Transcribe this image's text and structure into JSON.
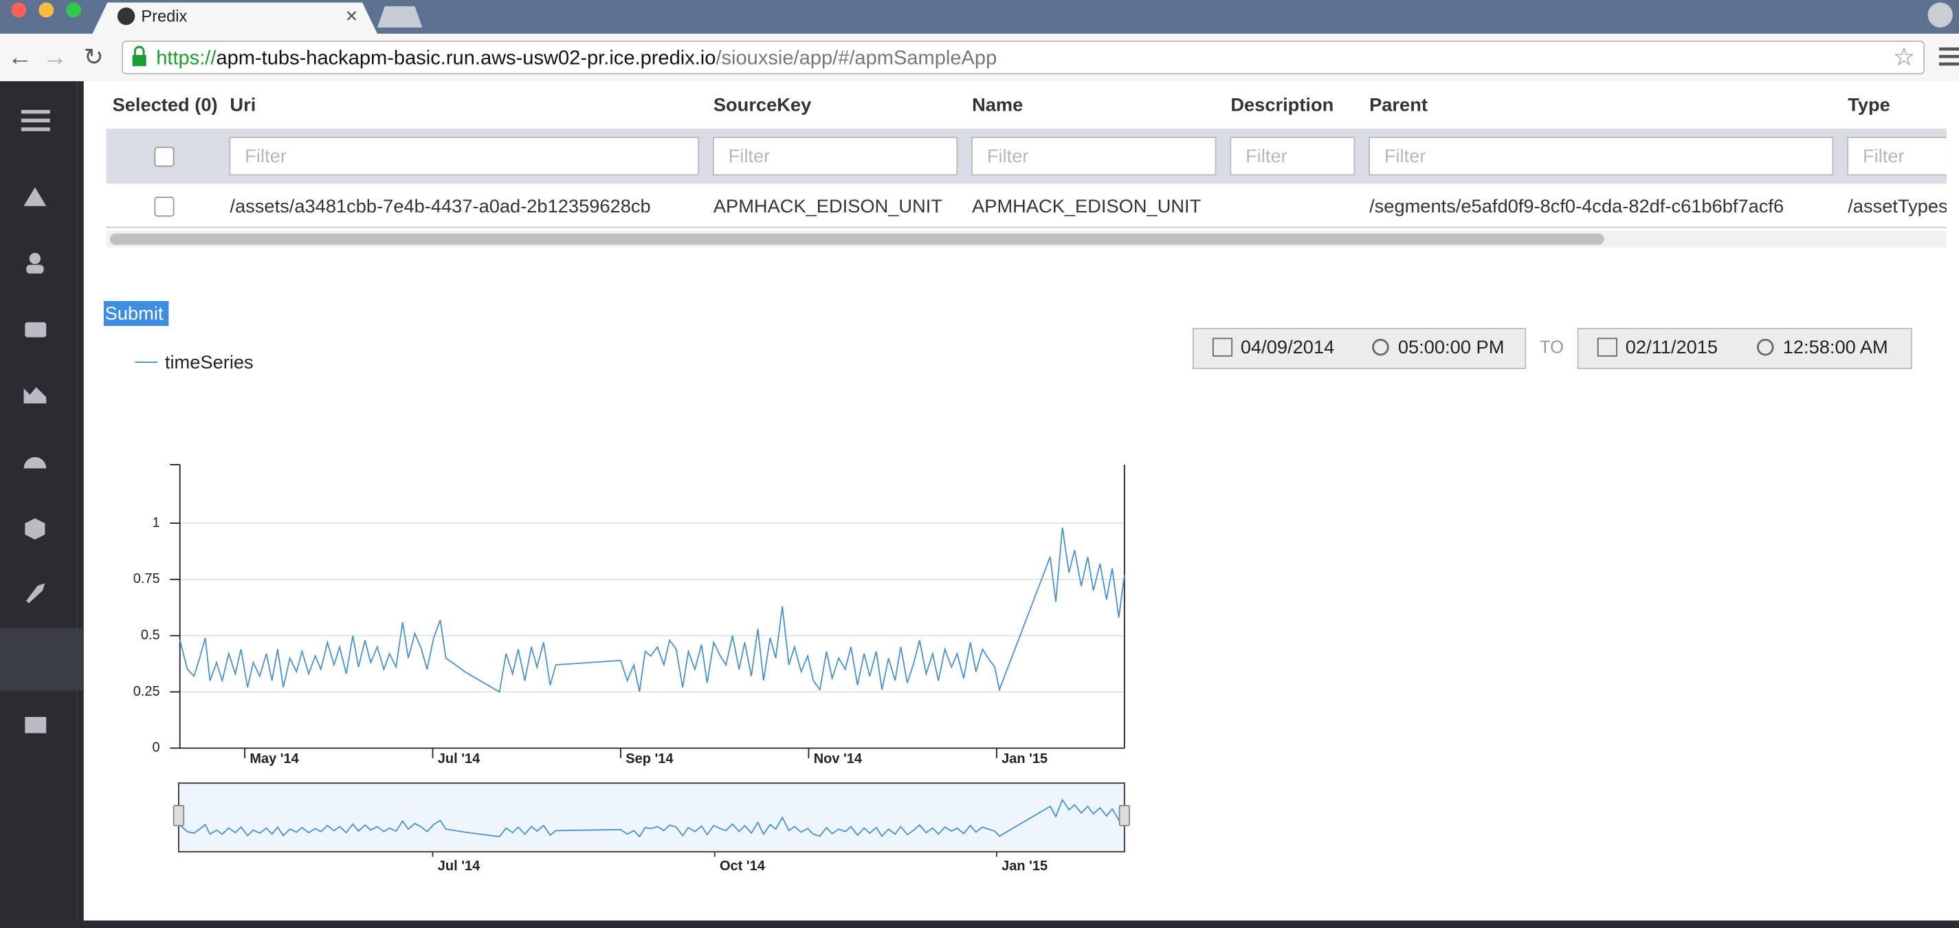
{
  "browser": {
    "tab_title": "Predix",
    "url_scheme": "https://",
    "url_host": "apm-tubs-hackapm-basic.run.aws-usw02-pr.ice.predix.io",
    "url_path": "/siouxsie/app/#/apmSampleApp"
  },
  "table": {
    "headers": [
      "Selected (0)",
      "Uri",
      "SourceKey",
      "Name",
      "Description",
      "Parent",
      "Type"
    ],
    "filter_placeholders": [
      "Filter",
      "Filter",
      "Filter",
      "Filter",
      "Filter",
      "Filter"
    ],
    "rows": [
      {
        "uri": "/assets/a3481cbb-7e4b-4437-a0ad-2b12359628cb",
        "source_key": "APMHACK_EDISON_UNIT",
        "name": "APMHACK_EDISON_UNIT",
        "parent": "/segments/e5afd0f9-8cf0-4cda-82df-c61b6bf7acf6",
        "type": "/assetTypes"
      }
    ]
  },
  "submit": "Submit",
  "date_range": {
    "from_date": "04/09/2014",
    "from_time": "05:00:00 PM",
    "separator": "TO",
    "to_date": "02/11/2015",
    "to_time": "12:58:00 AM"
  },
  "chart_data": {
    "type": "line",
    "x": [
      3.31,
      3.39,
      3.46,
      3.52,
      3.58,
      3.63,
      3.7,
      3.76,
      3.83,
      3.9,
      3.96,
      4.03,
      4.09,
      4.16,
      4.23,
      4.29,
      4.35,
      4.41,
      4.48,
      4.55,
      4.61,
      4.68,
      4.75,
      4.81,
      4.88,
      4.95,
      5.01,
      5.08,
      5.15,
      5.21,
      5.28,
      5.34,
      5.41,
      5.48,
      5.54,
      5.61,
      5.68,
      5.74,
      5.81,
      5.88,
      5.94,
      6.01,
      6.08,
      6.14,
      6.21,
      6.34,
      6.71,
      6.78,
      6.85,
      6.91,
      6.98,
      7.05,
      7.11,
      7.18,
      7.25,
      7.31,
      8.0,
      8.07,
      8.14,
      8.2,
      8.26,
      8.32,
      8.39,
      8.46,
      8.52,
      8.59,
      8.66,
      8.72,
      8.79,
      8.86,
      8.92,
      8.99,
      9.06,
      9.12,
      9.19,
      9.26,
      9.32,
      9.39,
      9.46,
      9.52,
      9.59,
      9.65,
      9.72,
      9.79,
      9.85,
      9.92,
      9.99,
      10.05,
      10.12,
      10.19,
      10.25,
      10.32,
      10.39,
      10.45,
      10.52,
      10.59,
      10.65,
      10.72,
      10.78,
      10.85,
      10.92,
      10.98,
      11.05,
      11.12,
      11.18,
      11.25,
      11.32,
      11.38,
      11.45,
      11.52,
      11.58,
      11.65,
      11.72,
      11.78,
      11.85,
      11.91,
      11.98,
      12.03,
      12.57,
      12.63,
      12.7,
      12.77,
      12.83,
      12.9,
      12.97,
      13.03,
      13.1,
      13.17,
      13.23,
      13.3,
      13.36
    ],
    "series": [
      {
        "name": "timeSeries",
        "color": "#4a93cf",
        "values": [
          0.48,
          0.35,
          0.32,
          0.4,
          0.49,
          0.3,
          0.38,
          0.3,
          0.42,
          0.33,
          0.44,
          0.27,
          0.38,
          0.32,
          0.42,
          0.3,
          0.44,
          0.27,
          0.4,
          0.34,
          0.43,
          0.33,
          0.41,
          0.35,
          0.47,
          0.37,
          0.45,
          0.33,
          0.5,
          0.36,
          0.48,
          0.38,
          0.45,
          0.35,
          0.42,
          0.36,
          0.56,
          0.4,
          0.51,
          0.44,
          0.35,
          0.49,
          0.57,
          0.4,
          0.38,
          0.34,
          0.25,
          0.42,
          0.33,
          0.44,
          0.3,
          0.45,
          0.36,
          0.47,
          0.28,
          0.37,
          0.39,
          0.3,
          0.37,
          0.25,
          0.43,
          0.41,
          0.45,
          0.37,
          0.48,
          0.44,
          0.27,
          0.43,
          0.35,
          0.46,
          0.29,
          0.47,
          0.41,
          0.37,
          0.5,
          0.35,
          0.47,
          0.32,
          0.53,
          0.3,
          0.49,
          0.4,
          0.63,
          0.37,
          0.45,
          0.34,
          0.41,
          0.3,
          0.26,
          0.43,
          0.31,
          0.4,
          0.35,
          0.45,
          0.28,
          0.42,
          0.32,
          0.43,
          0.26,
          0.4,
          0.3,
          0.45,
          0.29,
          0.38,
          0.48,
          0.33,
          0.42,
          0.3,
          0.44,
          0.36,
          0.42,
          0.31,
          0.47,
          0.34,
          0.44,
          0.4,
          0.36,
          0.26,
          0.85,
          0.65,
          0.98,
          0.78,
          0.88,
          0.72,
          0.85,
          0.7,
          0.82,
          0.66,
          0.8,
          0.58,
          0.77
        ]
      }
    ],
    "xlim": [
      3.31,
      13.36
    ],
    "xticks": [
      {
        "value": 4,
        "label": "May '14"
      },
      {
        "value": 6,
        "label": "Jul '14"
      },
      {
        "value": 8,
        "label": "Sep '14"
      },
      {
        "value": 10,
        "label": "Nov '14"
      },
      {
        "value": 12,
        "label": "Jan '15"
      }
    ],
    "navigator_xticks": [
      {
        "value": 6,
        "label": "Jul '14"
      },
      {
        "value": 9,
        "label": "Oct '14"
      },
      {
        "value": 12,
        "label": "Jan '15"
      }
    ],
    "ylim": [
      0,
      1.26
    ],
    "yticks": [
      0,
      0.25,
      0.5,
      0.75,
      1
    ],
    "grid": true
  }
}
